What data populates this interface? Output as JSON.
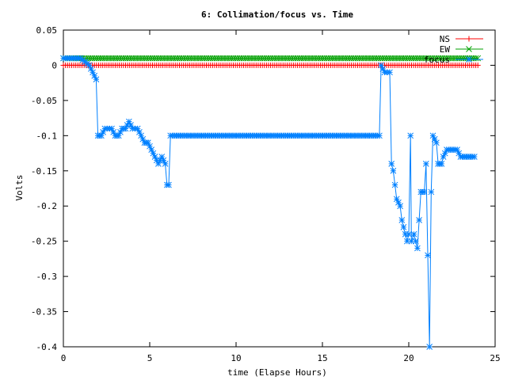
{
  "chart_data": {
    "type": "line",
    "title": "6: Collimation/focus vs. Time",
    "xlabel": "time (Elapse Hours)",
    "ylabel": "Volts",
    "xlim": [
      0,
      25
    ],
    "ylim": [
      -0.4,
      0.05
    ],
    "xticks": [
      0,
      5,
      10,
      15,
      20,
      25
    ],
    "xtick_labels": [
      "0",
      "5",
      "10",
      "15",
      "20",
      "25"
    ],
    "yticks": [
      0.05,
      0,
      -0.05,
      -0.1,
      -0.15,
      -0.2,
      -0.25,
      -0.3,
      -0.35,
      -0.4
    ],
    "ytick_labels": [
      "0.05",
      "0",
      "-0.05",
      "-0.1",
      "-0.15",
      "-0.2",
      "-0.25",
      "-0.3",
      "-0.35",
      "-0.4"
    ],
    "grid": false,
    "legend_position": "top-right",
    "series": [
      {
        "name": "NS",
        "color": "#ff0000",
        "marker": "plus",
        "points": [
          [
            0,
            0
          ],
          [
            24,
            0
          ]
        ]
      },
      {
        "name": "EW",
        "color": "#00a000",
        "marker": "cross",
        "points": [
          [
            0,
            0.01
          ],
          [
            24,
            0.01
          ]
        ]
      },
      {
        "name": "focus",
        "color": "#0080ff",
        "marker": "star",
        "points": [
          [
            0,
            0.01
          ],
          [
            1,
            0.01
          ],
          [
            1.5,
            0.0
          ],
          [
            1.7,
            -0.01
          ],
          [
            1.9,
            -0.02
          ],
          [
            2.0,
            -0.1
          ],
          [
            2.2,
            -0.1
          ],
          [
            2.4,
            -0.09
          ],
          [
            2.8,
            -0.09
          ],
          [
            3.0,
            -0.1
          ],
          [
            3.2,
            -0.1
          ],
          [
            3.4,
            -0.09
          ],
          [
            3.6,
            -0.09
          ],
          [
            3.8,
            -0.08
          ],
          [
            4.0,
            -0.09
          ],
          [
            4.3,
            -0.09
          ],
          [
            4.5,
            -0.1
          ],
          [
            4.7,
            -0.11
          ],
          [
            4.9,
            -0.11
          ],
          [
            5.1,
            -0.12
          ],
          [
            5.3,
            -0.13
          ],
          [
            5.5,
            -0.14
          ],
          [
            5.7,
            -0.13
          ],
          [
            5.9,
            -0.14
          ],
          [
            6.0,
            -0.17
          ],
          [
            6.1,
            -0.17
          ],
          [
            6.2,
            -0.1
          ],
          [
            10,
            -0.1
          ],
          [
            15,
            -0.1
          ],
          [
            18.3,
            -0.1
          ],
          [
            18.4,
            0.0
          ],
          [
            18.6,
            -0.01
          ],
          [
            18.9,
            -0.01
          ],
          [
            19.0,
            -0.14
          ],
          [
            19.1,
            -0.15
          ],
          [
            19.2,
            -0.17
          ],
          [
            19.3,
            -0.19
          ],
          [
            19.5,
            -0.2
          ],
          [
            19.6,
            -0.22
          ],
          [
            19.8,
            -0.24
          ],
          [
            19.9,
            -0.25
          ],
          [
            20.0,
            -0.24
          ],
          [
            20.1,
            -0.1
          ],
          [
            20.15,
            -0.25
          ],
          [
            20.3,
            -0.24
          ],
          [
            20.4,
            -0.25
          ],
          [
            20.5,
            -0.26
          ],
          [
            20.6,
            -0.22
          ],
          [
            20.7,
            -0.18
          ],
          [
            20.9,
            -0.18
          ],
          [
            21.0,
            -0.14
          ],
          [
            21.2,
            -0.4
          ],
          [
            21.3,
            -0.18
          ],
          [
            21.4,
            -0.1
          ],
          [
            21.6,
            -0.11
          ],
          [
            21.7,
            -0.14
          ],
          [
            21.9,
            -0.14
          ],
          [
            22.0,
            -0.13
          ],
          [
            22.2,
            -0.12
          ],
          [
            22.8,
            -0.12
          ],
          [
            23.0,
            -0.13
          ],
          [
            23.8,
            -0.13
          ]
        ]
      }
    ]
  }
}
